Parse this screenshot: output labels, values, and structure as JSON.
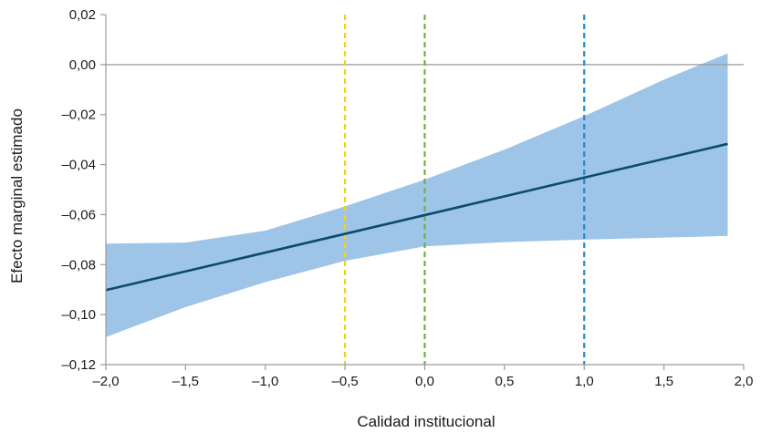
{
  "chart_data": {
    "type": "line",
    "title": "",
    "xlabel": "Calidad institucional",
    "ylabel": "Efecto marginal estimado",
    "xlim": [
      -2.0,
      2.0
    ],
    "ylim": [
      -0.12,
      0.02
    ],
    "x_ticks": [
      -2.0,
      -1.5,
      -1.0,
      -0.5,
      0.0,
      0.5,
      1.0,
      1.5,
      2.0
    ],
    "x_tick_labels": [
      "–2,0",
      "–1,5",
      "–1,0",
      "–0,5",
      "0,0",
      "0,5",
      "1,0",
      "1,5",
      "2,0"
    ],
    "y_ticks": [
      0.02,
      0.0,
      -0.02,
      -0.04,
      -0.06,
      -0.08,
      -0.1,
      -0.12
    ],
    "y_tick_labels": [
      "0,02",
      "0,00",
      "–0,02",
      "–0,04",
      "–0,06",
      "–0,08",
      "–0,10",
      "–0,12"
    ],
    "grid": false,
    "zero_line": true,
    "series": [
      {
        "x": [
          -2.0,
          1.9
        ],
        "y": [
          -0.0902,
          -0.0317
        ],
        "color": "#0b4a6e"
      }
    ],
    "confidence_band": {
      "color": "#9ec5e8",
      "x": [
        -2.0,
        -1.5,
        -1.0,
        -0.5,
        0.0,
        0.5,
        1.0,
        1.5,
        1.9
      ],
      "lower": [
        -0.109,
        -0.097,
        -0.087,
        -0.0785,
        -0.0727,
        -0.071,
        -0.07,
        -0.0692,
        -0.0685
      ],
      "upper": [
        -0.0716,
        -0.0712,
        -0.0664,
        -0.0567,
        -0.046,
        -0.034,
        -0.0206,
        -0.006,
        0.0045
      ]
    },
    "reference_lines": [
      {
        "x": -0.5,
        "color": "#f2d21b"
      },
      {
        "x": 0.0,
        "color": "#6ab43e"
      },
      {
        "x": 1.0,
        "color": "#1f8bd0"
      }
    ]
  }
}
